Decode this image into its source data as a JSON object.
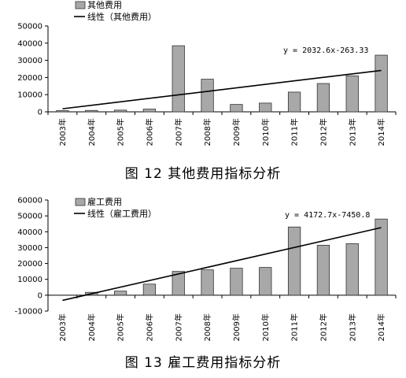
{
  "captions": [
    "图 12   其他费用指标分析",
    "图 13   雇工费用指标分析"
  ],
  "chart_data": [
    {
      "type": "bar",
      "categories": [
        "2003年",
        "2004年",
        "2005年",
        "2006年",
        "2007年",
        "2008年",
        "2009年",
        "2010年",
        "2011年",
        "2012年",
        "2013年",
        "2014年"
      ],
      "series": [
        {
          "name": "其他费用",
          "type": "bar",
          "values": [
            700,
            800,
            1000,
            1600,
            38500,
            19000,
            4300,
            5100,
            11500,
            16500,
            21000,
            33000
          ]
        },
        {
          "name": "线性（其他费用）",
          "type": "line",
          "trend": {
            "slope": 2032.6,
            "intercept": -263.33
          }
        }
      ],
      "equation": "y = 2032.6x-263.33",
      "ylim": [
        0,
        50000
      ],
      "yticks": [
        0,
        10000,
        20000,
        30000,
        40000,
        50000
      ],
      "legend": "top-left",
      "grid": false
    },
    {
      "type": "bar",
      "categories": [
        "2003年",
        "2004年",
        "2005年",
        "2006年",
        "2007年",
        "2008年",
        "2009年",
        "2010年",
        "2011年",
        "2012年",
        "2013年",
        "2014年"
      ],
      "series": [
        {
          "name": "雇工费用",
          "type": "bar",
          "values": [
            0,
            1800,
            2600,
            7000,
            15000,
            16000,
            17000,
            17500,
            43000,
            31500,
            32500,
            48000
          ]
        },
        {
          "name": "线性（雇工费用）",
          "type": "line",
          "trend": {
            "slope": 4172.7,
            "intercept": -7450.8
          }
        }
      ],
      "equation": "y = 4172.7x-7450.8",
      "ylim": [
        -10000,
        60000
      ],
      "yticks": [
        -10000,
        0,
        10000,
        20000,
        30000,
        40000,
        50000,
        60000
      ],
      "legend": "top-left",
      "grid": false
    }
  ],
  "colors": {
    "bar": "#a8a8a8",
    "bar_stroke": "#333333",
    "axis": "#000000"
  }
}
